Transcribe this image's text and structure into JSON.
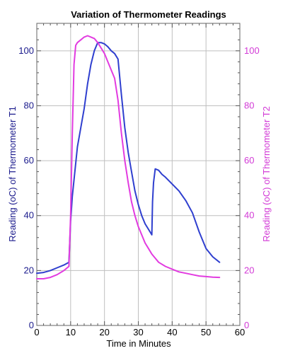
{
  "chart_data": {
    "type": "line",
    "title": "Variation of Thermometer Readings",
    "xlabel": "Time in Minutes",
    "ylabel_left": "Reading (oC) of Thermometer T1",
    "ylabel_right": "Reading (oC) of Thermometer T2",
    "xlim": [
      0,
      60
    ],
    "ylim": [
      0,
      110
    ],
    "x_ticks": [
      "0",
      "10",
      "20",
      "30",
      "40",
      "50",
      "60"
    ],
    "y_ticks_left": [
      "0",
      "20",
      "40",
      "60",
      "80",
      "100"
    ],
    "y_ticks_right": [
      "0",
      "20",
      "40",
      "60",
      "80",
      "100"
    ],
    "grid": true,
    "colors": {
      "t1": "#2f3fcf",
      "t2": "#e23be0",
      "left_axis": "#1a1a8c",
      "right_axis": "#d23ad6",
      "grid": "#bfbfbf"
    },
    "series": [
      {
        "key": "t1",
        "axis": "left",
        "x": [
          0,
          2,
          4,
          6,
          8,
          9.5,
          10,
          10.5,
          11,
          12,
          13,
          14,
          15,
          16,
          17,
          18,
          19,
          20,
          21,
          22,
          23,
          24,
          25,
          26,
          27,
          28,
          29,
          30,
          31,
          32,
          33,
          34,
          34.2,
          34.5,
          35,
          36,
          37,
          38,
          40,
          42,
          44,
          46,
          48,
          50,
          52,
          54
        ],
        "y": [
          19,
          19.3,
          20,
          21,
          22,
          23,
          38,
          47,
          53,
          65,
          72,
          79,
          88,
          95,
          100,
          103,
          103,
          102.5,
          101.5,
          100,
          99,
          97,
          84,
          72,
          63,
          56,
          49,
          44,
          40,
          37,
          35,
          33,
          45,
          52,
          57,
          56.5,
          55,
          54,
          51.5,
          49,
          45.5,
          41,
          34,
          28,
          25,
          23
        ]
      },
      {
        "key": "t2",
        "axis": "left",
        "x": [
          0,
          1,
          2,
          4,
          6,
          8,
          9.5,
          10,
          10.5,
          11,
          11.5,
          12,
          13,
          14,
          15,
          16,
          17,
          18,
          19,
          20,
          21,
          22,
          23,
          24,
          25,
          26,
          27,
          28,
          29,
          30,
          31,
          32,
          33,
          34,
          35,
          36,
          38,
          40,
          42,
          44,
          46,
          48,
          50,
          52,
          54
        ],
        "y": [
          17,
          17,
          17,
          17.5,
          18.5,
          20,
          21.5,
          40,
          70,
          95,
          102,
          103,
          104,
          105,
          105.5,
          105,
          104.5,
          103,
          101,
          99,
          96,
          93,
          90,
          82,
          70,
          60,
          52,
          45,
          40,
          36,
          33,
          30,
          28,
          26,
          24.5,
          23,
          21.5,
          20.5,
          19.5,
          19,
          18.5,
          18,
          17.8,
          17.6,
          17.5
        ]
      }
    ]
  }
}
